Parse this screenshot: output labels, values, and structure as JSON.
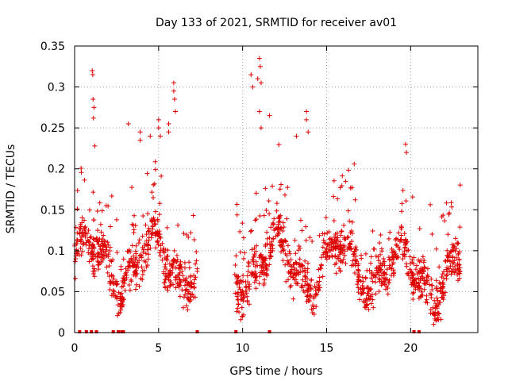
{
  "chart_data": {
    "type": "scatter",
    "title": "Day 133 of 2021, SRMTID for receiver av01",
    "xlabel": "GPS time / hours",
    "ylabel": "SRMTID / TECUs",
    "xlim": [
      0,
      24
    ],
    "ylim": [
      0,
      0.35
    ],
    "xticks": [
      0,
      5,
      10,
      15,
      20
    ],
    "yticks": [
      0,
      0.05,
      0.1,
      0.15,
      0.2,
      0.25,
      0.3,
      0.35
    ],
    "xtick_labels": [
      "0",
      "5",
      "10",
      "15",
      "20"
    ],
    "ytick_labels": [
      "0",
      "0.05",
      "0.1",
      "0.15",
      "0.2",
      "0.25",
      "0.3",
      "0.35"
    ],
    "grid": true,
    "marker": "+",
    "series": [
      {
        "name": "SRMTID",
        "color": "#dd0000",
        "segments": [
          {
            "start": 0.0,
            "end": 7.3
          },
          {
            "start": 9.5,
            "end": 23.0
          }
        ],
        "peaks": [
          {
            "x": 1.05,
            "y": 0.32
          },
          {
            "x": 1.08,
            "y": 0.315
          },
          {
            "x": 1.1,
            "y": 0.285
          },
          {
            "x": 1.15,
            "y": 0.275
          },
          {
            "x": 1.12,
            "y": 0.262
          },
          {
            "x": 1.2,
            "y": 0.228
          },
          {
            "x": 3.2,
            "y": 0.255
          },
          {
            "x": 3.9,
            "y": 0.245
          },
          {
            "x": 3.9,
            "y": 0.235
          },
          {
            "x": 4.5,
            "y": 0.24
          },
          {
            "x": 5.0,
            "y": 0.26
          },
          {
            "x": 5.0,
            "y": 0.25
          },
          {
            "x": 5.1,
            "y": 0.24
          },
          {
            "x": 5.6,
            "y": 0.255
          },
          {
            "x": 5.6,
            "y": 0.245
          },
          {
            "x": 5.9,
            "y": 0.305
          },
          {
            "x": 5.9,
            "y": 0.295
          },
          {
            "x": 5.95,
            "y": 0.285
          },
          {
            "x": 6.0,
            "y": 0.27
          },
          {
            "x": 10.5,
            "y": 0.315
          },
          {
            "x": 10.6,
            "y": 0.3
          },
          {
            "x": 10.9,
            "y": 0.31
          },
          {
            "x": 11.0,
            "y": 0.335
          },
          {
            "x": 11.05,
            "y": 0.325
          },
          {
            "x": 11.1,
            "y": 0.305
          },
          {
            "x": 11.0,
            "y": 0.27
          },
          {
            "x": 11.1,
            "y": 0.25
          },
          {
            "x": 11.6,
            "y": 0.265
          },
          {
            "x": 13.8,
            "y": 0.27
          },
          {
            "x": 13.8,
            "y": 0.26
          },
          {
            "x": 13.9,
            "y": 0.245
          },
          {
            "x": 13.2,
            "y": 0.24
          },
          {
            "x": 19.7,
            "y": 0.23
          },
          {
            "x": 19.75,
            "y": 0.22
          }
        ],
        "zero_markers": [
          0.3,
          0.7,
          1.0,
          1.3,
          2.3,
          2.6,
          2.8,
          2.9,
          7.3,
          9.6,
          11.6,
          20.2,
          20.5
        ]
      }
    ]
  }
}
